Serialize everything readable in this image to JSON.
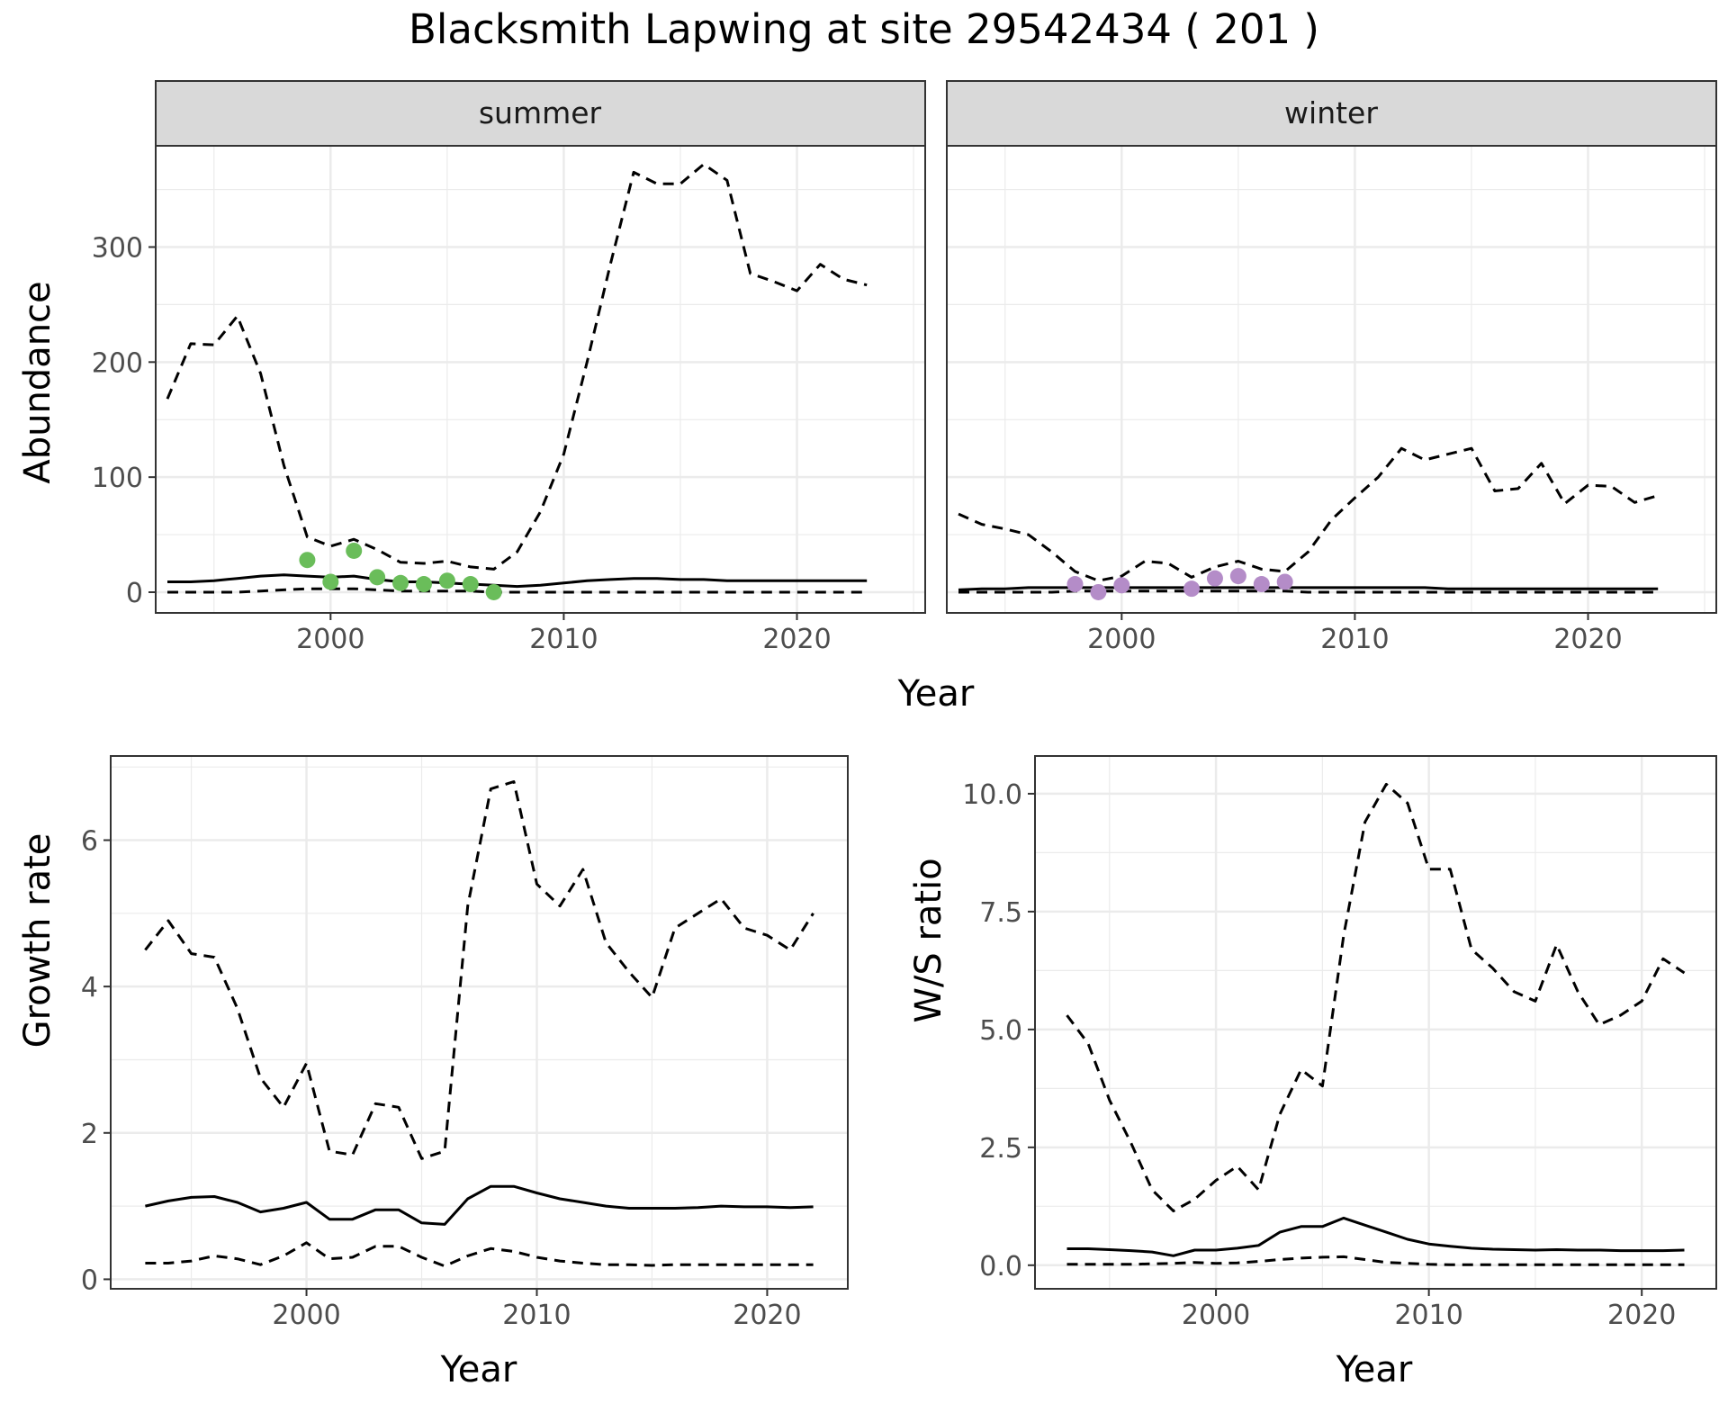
{
  "title": "Blacksmith Lapwing at site 29542434 ( 201 )",
  "colors": {
    "summer_points": "#6abd5a",
    "winter_points": "#b48cc8",
    "lines": "#000000",
    "grid": "#ebebeb",
    "strip_fill": "#d9d9d9",
    "panel_border": "#333333"
  },
  "chart_data": [
    {
      "type": "line",
      "facet_label": "summer",
      "xlabel": "Year",
      "ylabel": "Abundance",
      "xlim": [
        1992.5,
        2025.5
      ],
      "ylim": [
        -18,
        388
      ],
      "x_ticks": [
        2000,
        2010,
        2020
      ],
      "y_ticks": [
        0,
        100,
        200,
        300
      ],
      "grid": true,
      "x": [
        1993,
        1994,
        1995,
        1996,
        1997,
        1998,
        1999,
        2000,
        2001,
        2002,
        2003,
        2004,
        2005,
        2006,
        2007,
        2008,
        2009,
        2010,
        2011,
        2012,
        2013,
        2014,
        2015,
        2016,
        2017,
        2018,
        2019,
        2020,
        2021,
        2022,
        2023
      ],
      "series": [
        {
          "line_style": "solid",
          "values": [
            9,
            9,
            10,
            12,
            14,
            15,
            14,
            13,
            14,
            11,
            9,
            9,
            8,
            7,
            6,
            5,
            6,
            8,
            10,
            11,
            12,
            12,
            11,
            11,
            10,
            10,
            10,
            10,
            10,
            10,
            10
          ]
        },
        {
          "line_style": "dashed",
          "values": [
            168,
            216,
            215,
            240,
            190,
            110,
            48,
            40,
            46,
            37,
            26,
            25,
            27,
            22,
            20,
            35,
            70,
            120,
            200,
            285,
            365,
            355,
            355,
            372,
            358,
            277,
            270,
            262,
            285,
            272,
            267
          ]
        },
        {
          "line_style": "dashed",
          "values": [
            0,
            0,
            0,
            0,
            1,
            2,
            3,
            3,
            3,
            2,
            1,
            1,
            1,
            1,
            0,
            0,
            0,
            0,
            0,
            0,
            0,
            0,
            0,
            0,
            0,
            0,
            0,
            0,
            0,
            0,
            0
          ]
        }
      ],
      "points": {
        "x": [
          1999,
          2000,
          2001,
          2002,
          2003,
          2004,
          2005,
          2006,
          2007
        ],
        "y": [
          28,
          9,
          36,
          13,
          8,
          7,
          10,
          7,
          0
        ]
      }
    },
    {
      "type": "line",
      "facet_label": "winter",
      "xlabel": "Year",
      "ylabel": "",
      "xlim": [
        1992.5,
        2025.5
      ],
      "ylim": [
        -18,
        388
      ],
      "x_ticks": [
        2000,
        2010,
        2020
      ],
      "y_ticks": [
        0,
        100,
        200,
        300
      ],
      "grid": true,
      "x": [
        1993,
        1994,
        1995,
        1996,
        1997,
        1998,
        1999,
        2000,
        2001,
        2002,
        2003,
        2004,
        2005,
        2006,
        2007,
        2008,
        2009,
        2010,
        2011,
        2012,
        2013,
        2014,
        2015,
        2016,
        2017,
        2018,
        2019,
        2020,
        2021,
        2022,
        2023
      ],
      "series": [
        {
          "line_style": "solid",
          "values": [
            2,
            3,
            3,
            4,
            4,
            4,
            4,
            4,
            4,
            4,
            4,
            4,
            4,
            4,
            4,
            4,
            4,
            4,
            4,
            4,
            4,
            3,
            3,
            3,
            3,
            3,
            3,
            3,
            3,
            3,
            3
          ]
        },
        {
          "line_style": "dashed",
          "values": [
            68,
            59,
            55,
            50,
            35,
            18,
            10,
            14,
            27,
            25,
            13,
            22,
            27,
            20,
            18,
            35,
            63,
            82,
            100,
            125,
            115,
            120,
            125,
            88,
            90,
            112,
            77,
            93,
            92,
            78,
            84
          ]
        },
        {
          "line_style": "dashed",
          "values": [
            0,
            0,
            0,
            0,
            0,
            1,
            1,
            1,
            1,
            1,
            1,
            1,
            1,
            1,
            1,
            0,
            0,
            0,
            0,
            0,
            0,
            0,
            0,
            0,
            0,
            0,
            0,
            0,
            0,
            0,
            0
          ]
        }
      ],
      "points": {
        "x": [
          1998,
          1999,
          2000,
          2003,
          2004,
          2005,
          2006,
          2007
        ],
        "y": [
          7,
          0,
          6,
          3,
          12,
          14,
          7,
          9
        ]
      }
    },
    {
      "type": "line",
      "xlabel": "Year",
      "ylabel": "Growth rate",
      "xlim": [
        1991.5,
        2023.5
      ],
      "ylim": [
        -0.13,
        7.15
      ],
      "x_ticks": [
        2000,
        2010,
        2020
      ],
      "y_ticks": [
        0,
        2,
        4,
        6
      ],
      "grid": true,
      "x": [
        1993,
        1994,
        1995,
        1996,
        1997,
        1998,
        1999,
        2000,
        2001,
        2002,
        2003,
        2004,
        2005,
        2006,
        2007,
        2008,
        2009,
        2010,
        2011,
        2012,
        2013,
        2014,
        2015,
        2016,
        2017,
        2018,
        2019,
        2020,
        2021,
        2022
      ],
      "series": [
        {
          "line_style": "solid",
          "values": [
            1.0,
            1.07,
            1.12,
            1.13,
            1.05,
            0.92,
            0.97,
            1.05,
            0.82,
            0.82,
            0.95,
            0.95,
            0.77,
            0.75,
            1.1,
            1.27,
            1.27,
            1.18,
            1.1,
            1.05,
            1.0,
            0.97,
            0.97,
            0.97,
            0.98,
            1.0,
            0.99,
            0.99,
            0.98,
            0.99
          ]
        },
        {
          "line_style": "dashed",
          "values": [
            4.5,
            4.9,
            4.45,
            4.4,
            3.7,
            2.75,
            2.35,
            2.95,
            1.75,
            1.7,
            2.4,
            2.35,
            1.65,
            1.75,
            5.1,
            6.7,
            6.8,
            5.4,
            5.1,
            5.6,
            4.6,
            4.2,
            3.85,
            4.8,
            5.0,
            5.2,
            4.8,
            4.7,
            4.5,
            5.0
          ]
        },
        {
          "line_style": "dashed",
          "values": [
            0.22,
            0.22,
            0.25,
            0.32,
            0.28,
            0.2,
            0.32,
            0.5,
            0.28,
            0.3,
            0.45,
            0.45,
            0.3,
            0.18,
            0.32,
            0.42,
            0.38,
            0.3,
            0.25,
            0.22,
            0.2,
            0.2,
            0.19,
            0.2,
            0.2,
            0.2,
            0.2,
            0.2,
            0.2,
            0.2
          ]
        }
      ]
    },
    {
      "type": "line",
      "xlabel": "Year",
      "ylabel": "W/S ratio",
      "xlim": [
        1991.5,
        2023.5
      ],
      "ylim": [
        -0.5,
        10.8
      ],
      "x_ticks": [
        2000,
        2010,
        2020
      ],
      "y_ticks": [
        0.0,
        2.5,
        5.0,
        7.5,
        10.0
      ],
      "y_tick_labels": [
        "0.0",
        "2.5",
        "5.0",
        "7.5",
        "10.0"
      ],
      "grid": true,
      "x": [
        1993,
        1994,
        1995,
        1996,
        1997,
        1998,
        1999,
        2000,
        2001,
        2002,
        2003,
        2004,
        2005,
        2006,
        2007,
        2008,
        2009,
        2010,
        2011,
        2012,
        2013,
        2014,
        2015,
        2016,
        2017,
        2018,
        2019,
        2020,
        2021,
        2022
      ],
      "series": [
        {
          "line_style": "solid",
          "values": [
            0.35,
            0.35,
            0.33,
            0.31,
            0.28,
            0.2,
            0.32,
            0.32,
            0.36,
            0.42,
            0.7,
            0.82,
            0.82,
            1.0,
            0.85,
            0.7,
            0.55,
            0.45,
            0.4,
            0.36,
            0.34,
            0.33,
            0.32,
            0.33,
            0.32,
            0.32,
            0.31,
            0.31,
            0.31,
            0.32
          ]
        },
        {
          "line_style": "dashed",
          "values": [
            0.02,
            0.02,
            0.02,
            0.02,
            0.03,
            0.04,
            0.06,
            0.04,
            0.05,
            0.08,
            0.12,
            0.15,
            0.17,
            0.18,
            0.12,
            0.06,
            0.04,
            0.02,
            0.01,
            0.01,
            0.01,
            0.01,
            0.01,
            0.01,
            0.01,
            0.01,
            0.01,
            0.01,
            0.01,
            0.01
          ]
        },
        {
          "line_style": "dashed",
          "values": [
            5.3,
            4.7,
            3.5,
            2.6,
            1.6,
            1.15,
            1.4,
            1.8,
            2.1,
            1.6,
            3.2,
            4.15,
            3.8,
            7.0,
            9.4,
            10.2,
            9.8,
            8.4,
            8.4,
            6.7,
            6.3,
            5.8,
            5.6,
            6.8,
            5.8,
            5.1,
            5.3,
            5.6,
            6.5,
            6.2
          ]
        }
      ]
    }
  ]
}
